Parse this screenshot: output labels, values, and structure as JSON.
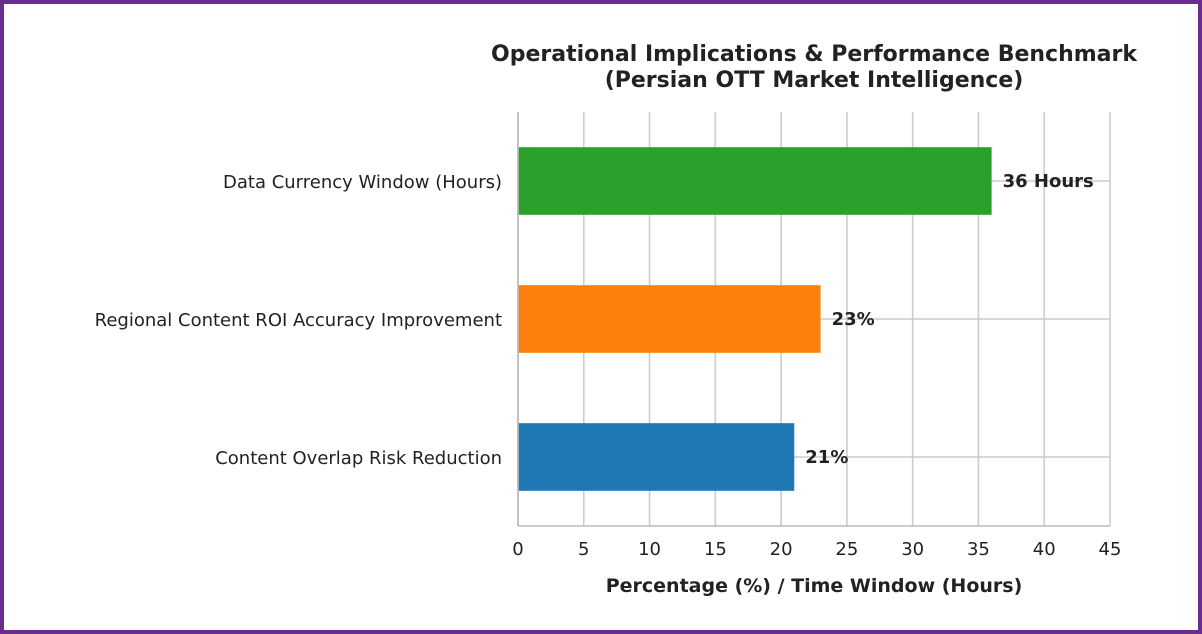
{
  "chart_data": {
    "type": "bar",
    "orientation": "horizontal",
    "title": "Operational Implications & Performance Benchmark",
    "subtitle": "(Persian OTT Market Intelligence)",
    "xlabel": "Percentage (%) / Time Window (Hours)",
    "ylabel": "",
    "xlim": [
      0,
      45
    ],
    "xticks": [
      "0",
      "5",
      "10",
      "15",
      "20",
      "25",
      "30",
      "35",
      "40",
      "45"
    ],
    "grid": true,
    "bars": [
      {
        "category": "Data Currency Window (Hours)",
        "value": 36,
        "label": "36 Hours",
        "color": "#2ca02c"
      },
      {
        "category": "Regional Content ROI Accuracy Improvement",
        "value": 23,
        "label": "23%",
        "color": "#ff7f0e"
      },
      {
        "category": "Content Overlap Risk Reduction",
        "value": 21,
        "label": "21%",
        "color": "#1f77b4"
      }
    ]
  }
}
